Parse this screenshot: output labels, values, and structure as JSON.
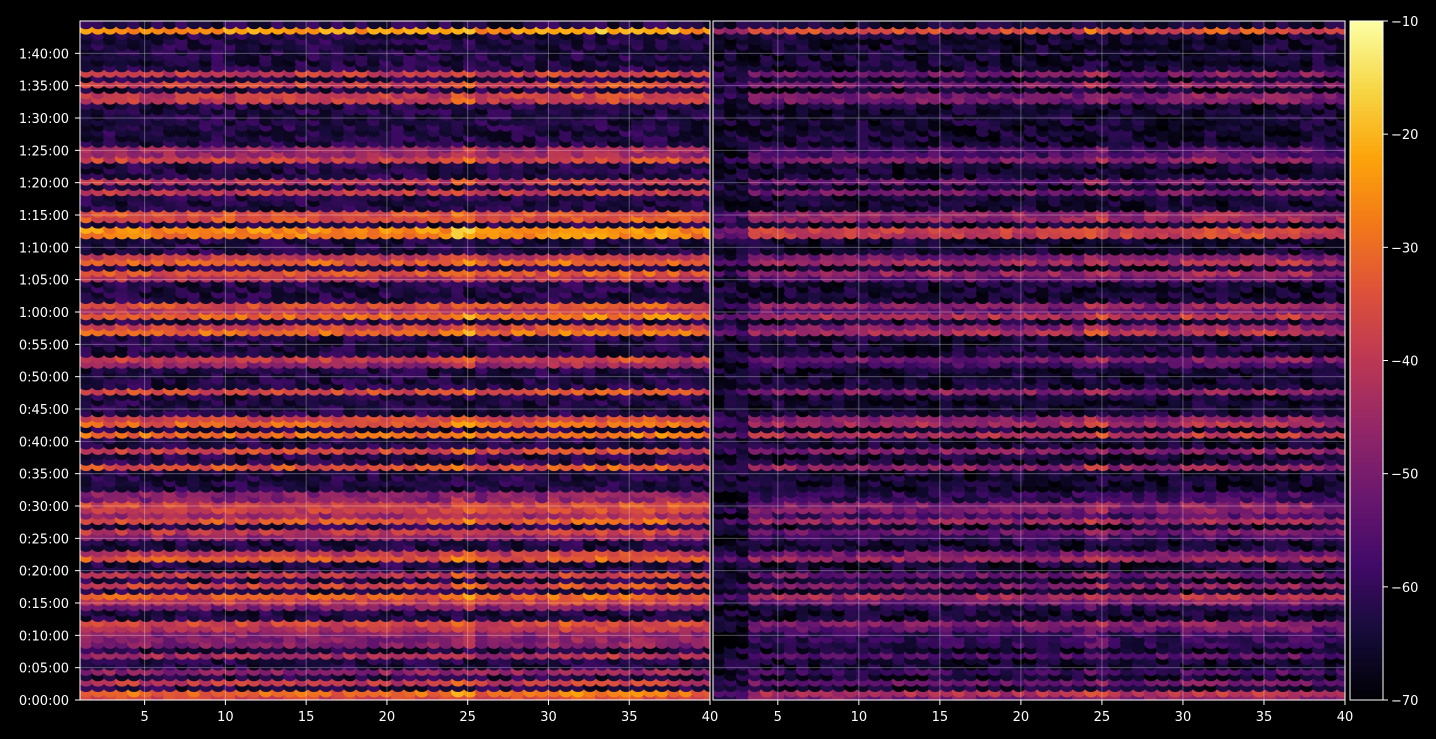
{
  "chart_data": {
    "type": "heatmap",
    "layout": "two side-by-side panels sharing the y axis, one colorbar on the right",
    "grid": true,
    "background": "#000000",
    "grid_color": "#ffffff",
    "panels": [
      {
        "name": "left",
        "xlim": [
          1,
          40
        ],
        "x_ticks": [
          "5",
          "10",
          "15",
          "20",
          "25",
          "30",
          "35",
          "40"
        ],
        "x_tick_values": [
          5,
          10,
          15,
          20,
          25,
          30,
          35,
          40
        ],
        "intensity": "high"
      },
      {
        "name": "right",
        "xlim": [
          1,
          40
        ],
        "x_ticks": [
          "5",
          "10",
          "15",
          "20",
          "25",
          "30",
          "35",
          "40"
        ],
        "x_tick_values": [
          5,
          10,
          15,
          20,
          25,
          30,
          35,
          40
        ],
        "intensity": "low"
      }
    ],
    "y_axis": {
      "unit": "seconds",
      "range": [
        0,
        6300
      ],
      "tick_values": [
        0,
        300,
        600,
        900,
        1200,
        1500,
        1800,
        2100,
        2400,
        2700,
        3000,
        3300,
        3600,
        3900,
        4200,
        4500,
        4800,
        5100,
        5400,
        5700,
        6000
      ],
      "tick_labels": [
        "0:00:00",
        "0:05:00",
        "0:10:00",
        "0:15:00",
        "0:20:00",
        "0:25:00",
        "0:30:00",
        "0:35:00",
        "0:40:00",
        "0:45:00",
        "0:50:00",
        "0:55:00",
        "1:00:00",
        "1:05:00",
        "1:10:00",
        "1:15:00",
        "1:20:00",
        "1:25:00",
        "1:30:00",
        "1:35:00",
        "1:40:00"
      ]
    },
    "colorbar": {
      "colormap": "inferno",
      "range": [
        -70,
        -10
      ],
      "tick_values": [
        -70,
        -60,
        -50,
        -40,
        -30,
        -20,
        -10
      ],
      "tick_labels": [
        "−70",
        "−60",
        "−50",
        "−40",
        "−30",
        "−20",
        "−10"
      ]
    },
    "hot_rows_seconds": [
      {
        "t": 60,
        "level": -25
      },
      {
        "t": 180,
        "level": -38
      },
      {
        "t": 280,
        "level": -45
      },
      {
        "t": 430,
        "level": -42
      },
      {
        "t": 550,
        "level": -40
      },
      {
        "t": 660,
        "level": -36
      },
      {
        "t": 720,
        "level": -35
      },
      {
        "t": 870,
        "level": -48
      },
      {
        "t": 960,
        "level": -27
      },
      {
        "t": 1080,
        "level": -35
      },
      {
        "t": 1180,
        "level": -38
      },
      {
        "t": 1340,
        "level": -28
      },
      {
        "t": 1560,
        "level": -35
      },
      {
        "t": 1680,
        "level": -32
      },
      {
        "t": 1760,
        "level": -33
      },
      {
        "t": 1810,
        "level": -32
      },
      {
        "t": 1900,
        "level": -40
      },
      {
        "t": 2170,
        "level": -33
      },
      {
        "t": 2330,
        "level": -35
      },
      {
        "t": 2480,
        "level": -28
      },
      {
        "t": 2570,
        "level": -30
      },
      {
        "t": 2620,
        "level": -36
      },
      {
        "t": 2880,
        "level": -34
      },
      {
        "t": 3160,
        "level": -34
      },
      {
        "t": 3440,
        "level": -25
      },
      {
        "t": 3580,
        "level": -28
      },
      {
        "t": 3660,
        "level": -30
      },
      {
        "t": 3960,
        "level": -29
      },
      {
        "t": 4090,
        "level": -27
      },
      {
        "t": 4340,
        "level": -22
      },
      {
        "t": 4380,
        "level": -24
      },
      {
        "t": 4500,
        "level": -26
      },
      {
        "t": 4720,
        "level": -38
      },
      {
        "t": 4830,
        "level": -39
      },
      {
        "t": 5030,
        "level": -36
      },
      {
        "t": 5100,
        "level": -37
      },
      {
        "t": 5600,
        "level": -30
      },
      {
        "t": 5720,
        "level": -36
      },
      {
        "t": 5830,
        "level": -37
      },
      {
        "t": 6220,
        "level": -22
      }
    ]
  }
}
